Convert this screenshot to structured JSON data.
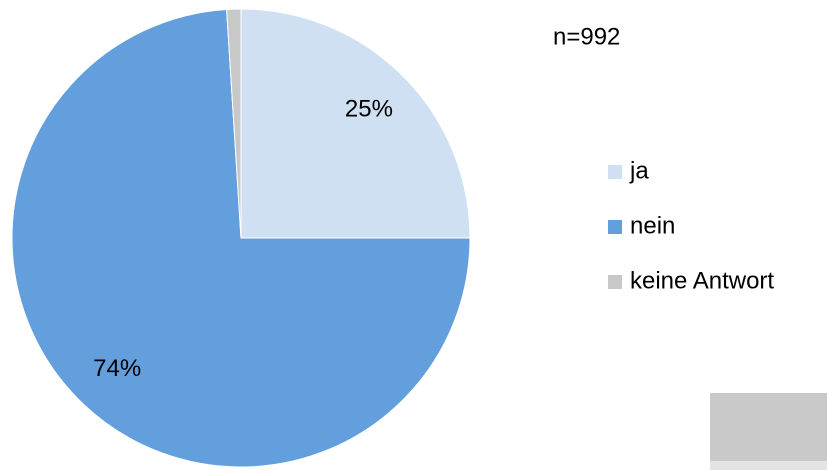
{
  "chart_data": {
    "type": "pie",
    "annotation": "n=992",
    "categories": [
      "ja",
      "nein",
      "keine Antwort"
    ],
    "values": [
      25,
      74,
      1
    ],
    "value_labels": [
      "25%",
      "74%",
      null
    ],
    "colors": [
      "#cfe0f3",
      "#639fdc",
      "#c8c8c8"
    ],
    "legend": "right"
  }
}
